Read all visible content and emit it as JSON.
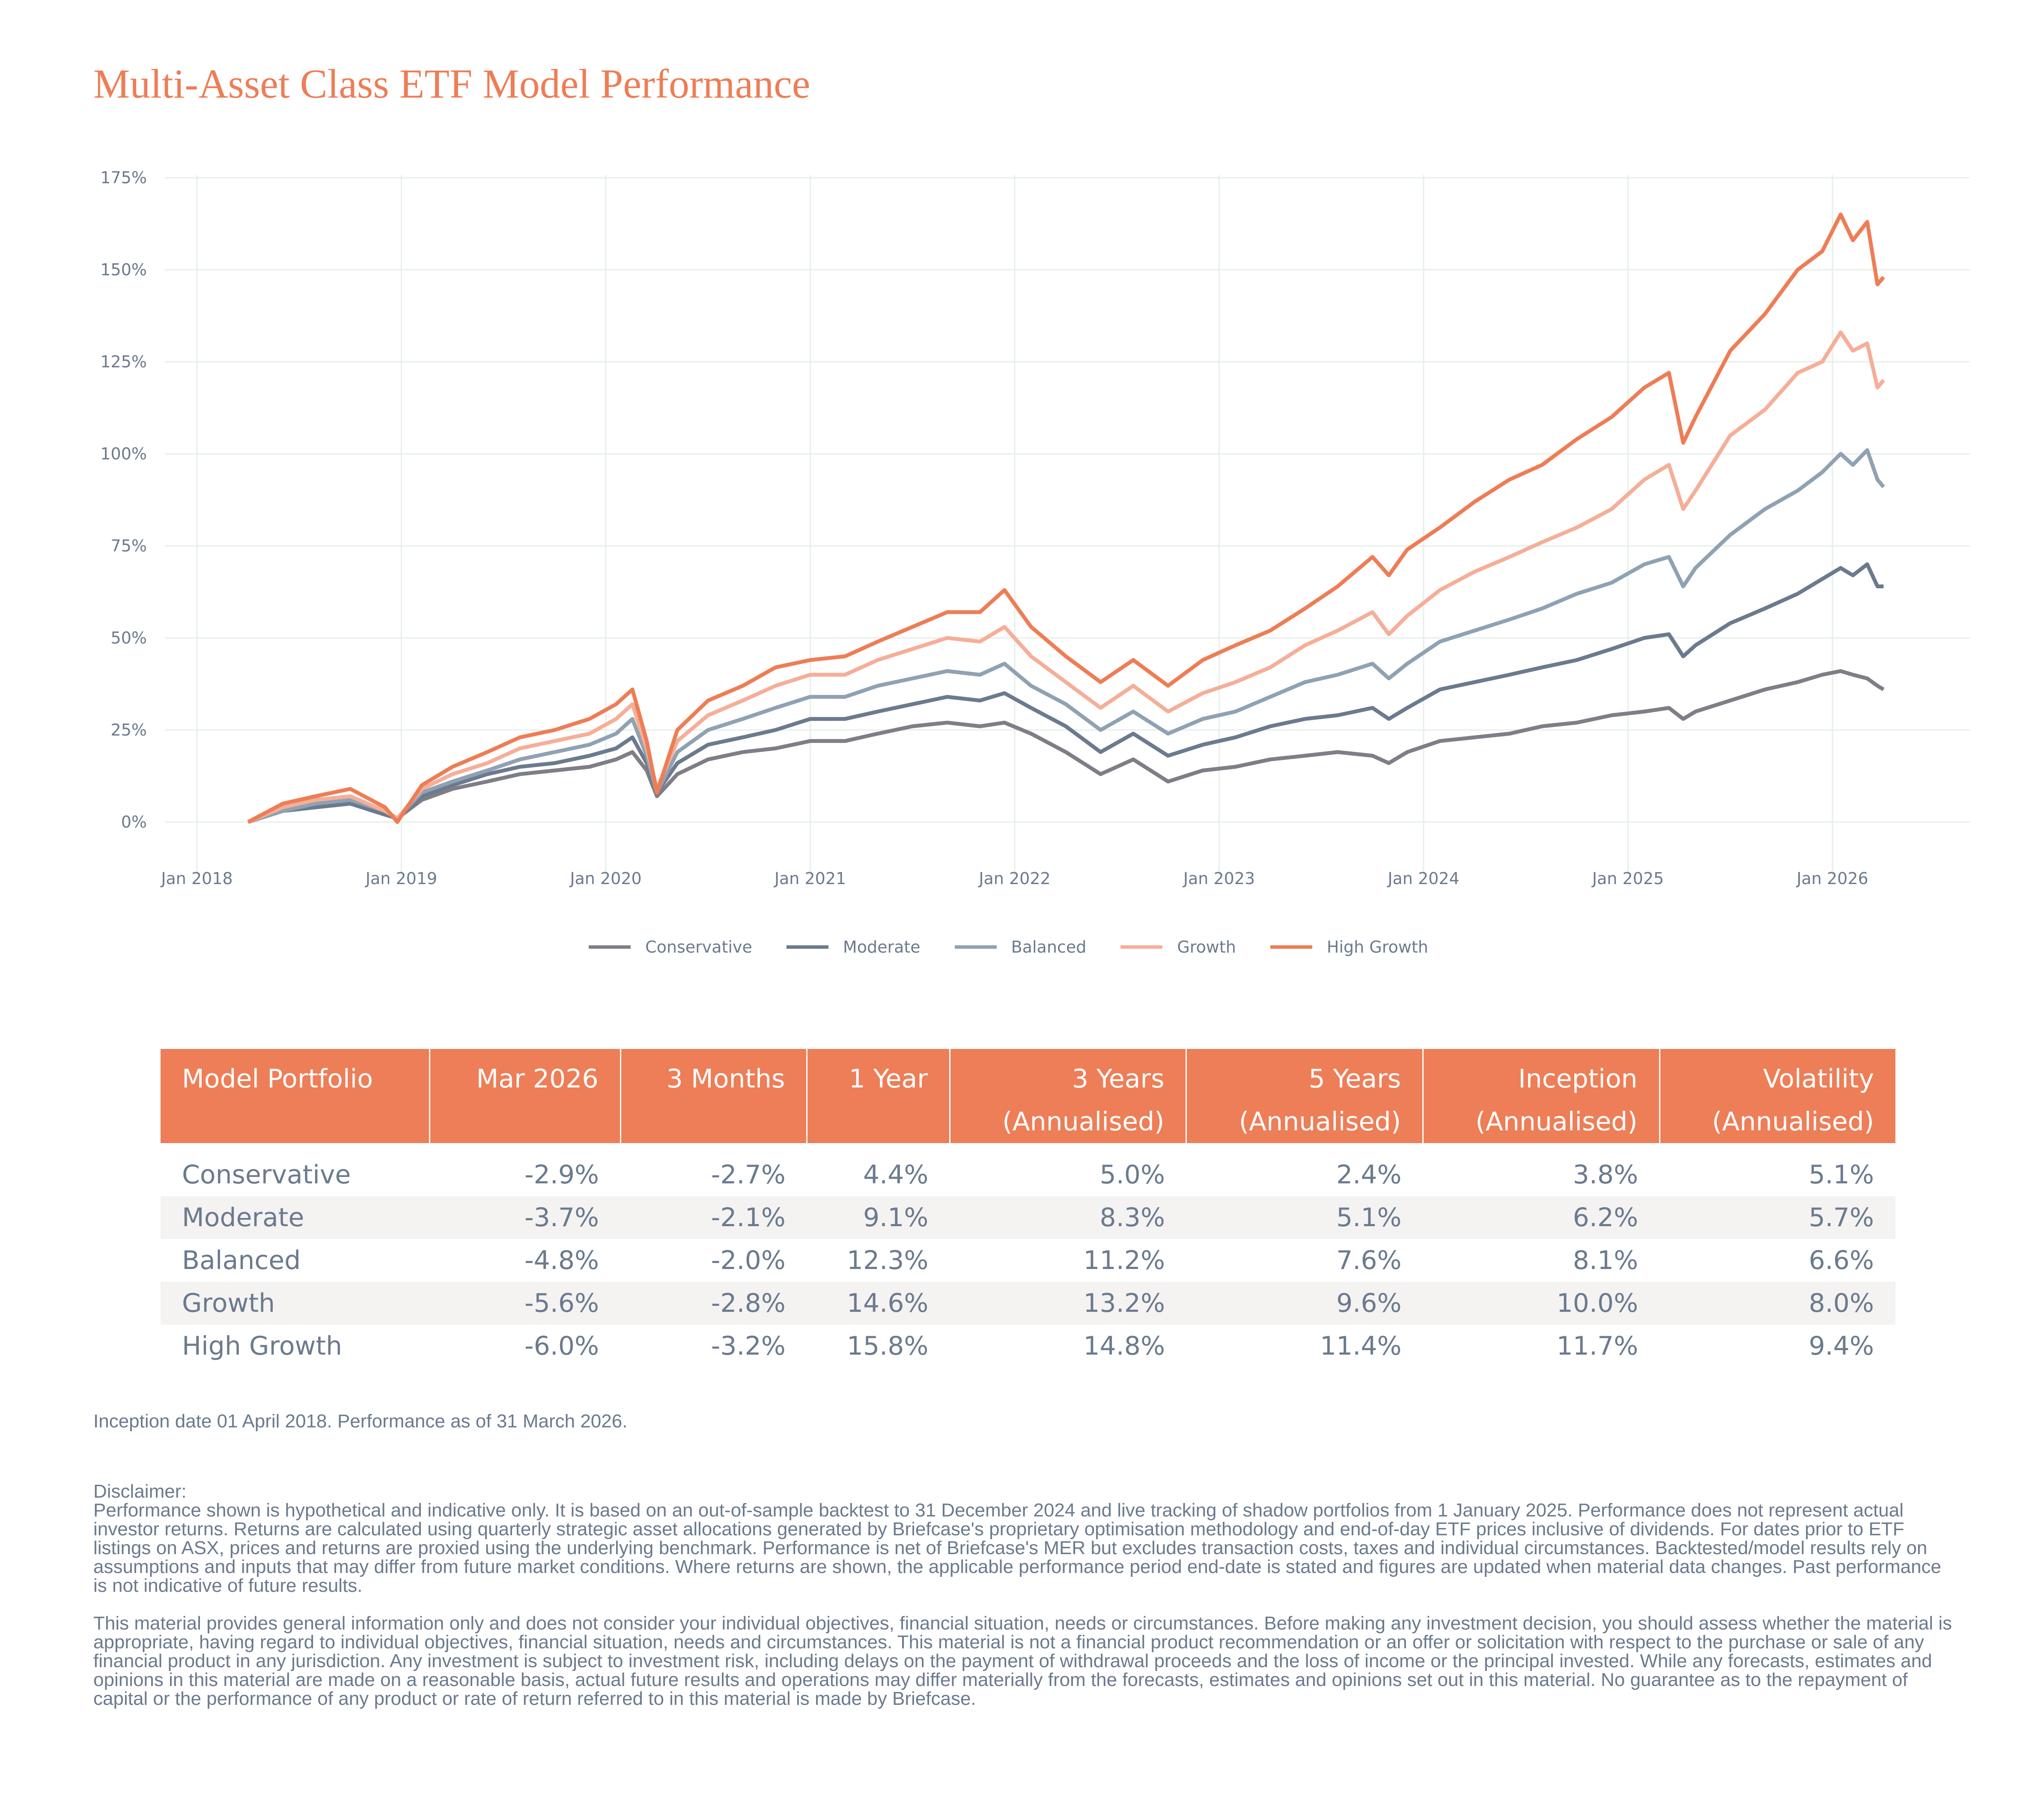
{
  "title": "Multi-Asset Class ETF Model Performance",
  "chart_data": {
    "type": "line",
    "title": "",
    "xlabel": "",
    "ylabel": "",
    "x_ticks": [
      "Jan 2018",
      "Jan 2019",
      "Jan 2020",
      "Jan 2021",
      "Jan 2022",
      "Jan 2023",
      "Jan 2024",
      "Jan 2025",
      "Jan 2026"
    ],
    "x_tick_values": [
      2018,
      2019,
      2020,
      2021,
      2022,
      2023,
      2024,
      2025,
      2026
    ],
    "x_range": [
      2017.85,
      2026.65
    ],
    "y_ticks": [
      "0%",
      "25%",
      "50%",
      "75%",
      "100%",
      "125%",
      "150%",
      "175%"
    ],
    "y_tick_values": [
      0,
      25,
      50,
      75,
      100,
      125,
      150,
      175
    ],
    "ylim": [
      -10,
      175
    ],
    "grid": true,
    "legend_position": "bottom",
    "x": [
      2018.25,
      2018.42,
      2018.58,
      2018.75,
      2018.92,
      2018.98,
      2019.1,
      2019.25,
      2019.42,
      2019.58,
      2019.75,
      2019.92,
      2020.05,
      2020.13,
      2020.2,
      2020.25,
      2020.35,
      2020.5,
      2020.67,
      2020.83,
      2021.0,
      2021.17,
      2021.33,
      2021.5,
      2021.67,
      2021.83,
      2021.95,
      2022.08,
      2022.25,
      2022.42,
      2022.58,
      2022.75,
      2022.92,
      2023.08,
      2023.25,
      2023.42,
      2023.58,
      2023.75,
      2023.83,
      2023.92,
      2024.08,
      2024.25,
      2024.42,
      2024.58,
      2024.75,
      2024.92,
      2025.08,
      2025.2,
      2025.27,
      2025.33,
      2025.5,
      2025.67,
      2025.83,
      2025.95,
      2026.04,
      2026.1,
      2026.17,
      2026.22,
      2026.25
    ],
    "series": [
      {
        "name": "Conservative",
        "color": "#7f7e86",
        "values": [
          0,
          3,
          4,
          5,
          2,
          1,
          6,
          9,
          11,
          13,
          14,
          15,
          17,
          19,
          14,
          7,
          13,
          17,
          19,
          20,
          22,
          22,
          24,
          26,
          27,
          26,
          27,
          24,
          19,
          13,
          17,
          11,
          14,
          15,
          17,
          18,
          19,
          18,
          16,
          19,
          22,
          23,
          24,
          26,
          27,
          29,
          30,
          31,
          28,
          30,
          33,
          36,
          38,
          40,
          41,
          40,
          39,
          37,
          36
        ],
        "values_note": "percent cumulative return"
      },
      {
        "name": "Moderate",
        "color": "#6b7a8e",
        "values": [
          0,
          3,
          4,
          5,
          2,
          1,
          7,
          10,
          13,
          15,
          16,
          18,
          20,
          23,
          16,
          8,
          16,
          21,
          23,
          25,
          28,
          28,
          30,
          32,
          34,
          33,
          35,
          31,
          26,
          19,
          24,
          18,
          21,
          23,
          26,
          28,
          29,
          31,
          28,
          31,
          36,
          38,
          40,
          42,
          44,
          47,
          50,
          51,
          45,
          48,
          54,
          58,
          62,
          66,
          69,
          67,
          70,
          64,
          64
        ]
      },
      {
        "name": "Balanced",
        "color": "#8fa2b3",
        "values": [
          0,
          3,
          5,
          6,
          3,
          1,
          8,
          11,
          14,
          17,
          19,
          21,
          24,
          28,
          18,
          8,
          19,
          25,
          28,
          31,
          34,
          34,
          37,
          39,
          41,
          40,
          43,
          37,
          32,
          25,
          30,
          24,
          28,
          30,
          34,
          38,
          40,
          43,
          39,
          43,
          49,
          52,
          55,
          58,
          62,
          65,
          70,
          72,
          64,
          69,
          78,
          85,
          90,
          95,
          100,
          97,
          101,
          93,
          91
        ]
      },
      {
        "name": "Growth",
        "color": "#f5ae98",
        "values": [
          0,
          4,
          6,
          7,
          3,
          1,
          9,
          13,
          16,
          20,
          22,
          24,
          28,
          32,
          20,
          9,
          22,
          29,
          33,
          37,
          40,
          40,
          44,
          47,
          50,
          49,
          53,
          45,
          38,
          31,
          37,
          30,
          35,
          38,
          42,
          48,
          52,
          57,
          51,
          56,
          63,
          68,
          72,
          76,
          80,
          85,
          93,
          97,
          85,
          90,
          105,
          112,
          122,
          125,
          133,
          128,
          130,
          118,
          120
        ]
      },
      {
        "name": "High Growth",
        "color": "#ee7d55",
        "values": [
          0,
          5,
          7,
          9,
          4,
          0,
          10,
          15,
          19,
          23,
          25,
          28,
          32,
          36,
          22,
          8,
          25,
          33,
          37,
          42,
          44,
          45,
          49,
          53,
          57,
          57,
          63,
          53,
          45,
          38,
          44,
          37,
          44,
          48,
          52,
          58,
          64,
          72,
          67,
          74,
          80,
          87,
          93,
          97,
          104,
          110,
          118,
          122,
          103,
          110,
          128,
          138,
          150,
          155,
          165,
          158,
          163,
          146,
          148
        ]
      }
    ]
  },
  "legend": [
    {
      "label": "Conservative",
      "color": "#7f7e86"
    },
    {
      "label": "Moderate",
      "color": "#6b7a8e"
    },
    {
      "label": "Balanced",
      "color": "#8fa2b3"
    },
    {
      "label": "Growth",
      "color": "#f5ae98"
    },
    {
      "label": "High Growth",
      "color": "#ee7d55"
    }
  ],
  "table": {
    "headers": [
      {
        "line1": "Model Portfolio",
        "line2": ""
      },
      {
        "line1": "Mar 2026",
        "line2": ""
      },
      {
        "line1": "3 Months",
        "line2": ""
      },
      {
        "line1": "1 Year",
        "line2": ""
      },
      {
        "line1": "3 Years",
        "line2": "(Annualised)"
      },
      {
        "line1": "5 Years",
        "line2": "(Annualised)"
      },
      {
        "line1": "Inception",
        "line2": "(Annualised)"
      },
      {
        "line1": "Volatility",
        "line2": "(Annualised)"
      }
    ],
    "rows": [
      [
        "Conservative",
        "-2.9%",
        "-2.7%",
        "4.4%",
        "5.0%",
        "2.4%",
        "3.8%",
        "5.1%"
      ],
      [
        "Moderate",
        "-3.7%",
        "-2.1%",
        "9.1%",
        "8.3%",
        "5.1%",
        "6.2%",
        "5.7%"
      ],
      [
        "Balanced",
        "-4.8%",
        "-2.0%",
        "12.3%",
        "11.2%",
        "7.6%",
        "8.1%",
        "6.6%"
      ],
      [
        "Growth",
        "-5.6%",
        "-2.8%",
        "14.6%",
        "13.2%",
        "9.6%",
        "10.0%",
        "8.0%"
      ],
      [
        "High Growth",
        "-6.0%",
        "-3.2%",
        "15.8%",
        "14.8%",
        "11.4%",
        "11.7%",
        "9.4%"
      ]
    ]
  },
  "note": "Inception date 01 April 2018. Performance as of 31 March 2026.",
  "disclaimer": {
    "heading": "Disclaimer:",
    "p1": "Performance shown is hypothetical and indicative only. It is based on an out-of-sample backtest to 31 December 2024 and live tracking of shadow portfolios from 1 January 2025. Performance does not represent actual investor returns. Returns are calculated using quarterly strategic asset allocations generated by Briefcase's proprietary optimisation methodology and end-of-day ETF prices inclusive of dividends. For dates prior to ETF listings on ASX, prices and returns are proxied using the underlying benchmark. Performance is net of Briefcase's MER but excludes transaction costs, taxes and individual circumstances. Backtested/model results rely on assumptions and inputs that may differ from future market conditions. Where returns are shown, the applicable performance period end-date is stated and figures are updated when material data changes. Past performance is not indicative of future results.",
    "p2": "This material provides general information only and does not consider your individual objectives, financial situation, needs or circumstances. Before making any investment decision, you should assess whether the material is appropriate, having regard to individual objectives, financial situation, needs and circumstances. This material is not a financial product recommendation or an offer or solicitation with respect to the purchase or sale of any financial product in any jurisdiction. Any investment is subject to investment risk, including delays on the payment of withdrawal proceeds and the loss of income or the principal invested. While any forecasts, estimates and opinions in this material are made on a reasonable basis, actual future results and operations may differ materially from the forecasts, estimates and opinions set out in this material. No guarantee as to the repayment of capital or the performance of any product or rate of return referred to in this material is made by Briefcase."
  }
}
